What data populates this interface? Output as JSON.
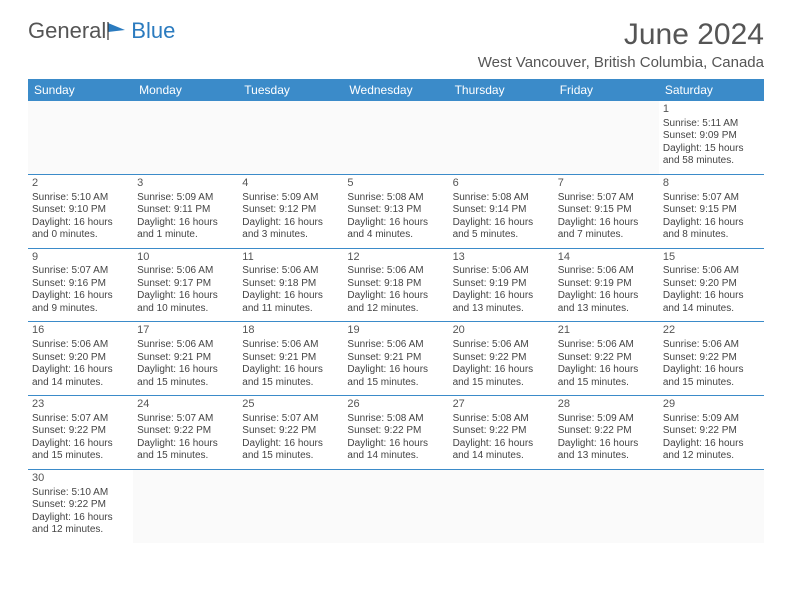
{
  "logo": {
    "text1": "General",
    "text2": "Blue"
  },
  "title": "June 2024",
  "location": "West Vancouver, British Columbia, Canada",
  "header_bg": "#3b8bc9",
  "header_fg": "#ffffff",
  "border_color": "#3b8bc9",
  "days": [
    "Sunday",
    "Monday",
    "Tuesday",
    "Wednesday",
    "Thursday",
    "Friday",
    "Saturday"
  ],
  "weeks": [
    [
      null,
      null,
      null,
      null,
      null,
      null,
      {
        "n": "1",
        "sr": "Sunrise: 5:11 AM",
        "ss": "Sunset: 9:09 PM",
        "dl": "Daylight: 15 hours and 58 minutes."
      }
    ],
    [
      {
        "n": "2",
        "sr": "Sunrise: 5:10 AM",
        "ss": "Sunset: 9:10 PM",
        "dl": "Daylight: 16 hours and 0 minutes."
      },
      {
        "n": "3",
        "sr": "Sunrise: 5:09 AM",
        "ss": "Sunset: 9:11 PM",
        "dl": "Daylight: 16 hours and 1 minute."
      },
      {
        "n": "4",
        "sr": "Sunrise: 5:09 AM",
        "ss": "Sunset: 9:12 PM",
        "dl": "Daylight: 16 hours and 3 minutes."
      },
      {
        "n": "5",
        "sr": "Sunrise: 5:08 AM",
        "ss": "Sunset: 9:13 PM",
        "dl": "Daylight: 16 hours and 4 minutes."
      },
      {
        "n": "6",
        "sr": "Sunrise: 5:08 AM",
        "ss": "Sunset: 9:14 PM",
        "dl": "Daylight: 16 hours and 5 minutes."
      },
      {
        "n": "7",
        "sr": "Sunrise: 5:07 AM",
        "ss": "Sunset: 9:15 PM",
        "dl": "Daylight: 16 hours and 7 minutes."
      },
      {
        "n": "8",
        "sr": "Sunrise: 5:07 AM",
        "ss": "Sunset: 9:15 PM",
        "dl": "Daylight: 16 hours and 8 minutes."
      }
    ],
    [
      {
        "n": "9",
        "sr": "Sunrise: 5:07 AM",
        "ss": "Sunset: 9:16 PM",
        "dl": "Daylight: 16 hours and 9 minutes."
      },
      {
        "n": "10",
        "sr": "Sunrise: 5:06 AM",
        "ss": "Sunset: 9:17 PM",
        "dl": "Daylight: 16 hours and 10 minutes."
      },
      {
        "n": "11",
        "sr": "Sunrise: 5:06 AM",
        "ss": "Sunset: 9:18 PM",
        "dl": "Daylight: 16 hours and 11 minutes."
      },
      {
        "n": "12",
        "sr": "Sunrise: 5:06 AM",
        "ss": "Sunset: 9:18 PM",
        "dl": "Daylight: 16 hours and 12 minutes."
      },
      {
        "n": "13",
        "sr": "Sunrise: 5:06 AM",
        "ss": "Sunset: 9:19 PM",
        "dl": "Daylight: 16 hours and 13 minutes."
      },
      {
        "n": "14",
        "sr": "Sunrise: 5:06 AM",
        "ss": "Sunset: 9:19 PM",
        "dl": "Daylight: 16 hours and 13 minutes."
      },
      {
        "n": "15",
        "sr": "Sunrise: 5:06 AM",
        "ss": "Sunset: 9:20 PM",
        "dl": "Daylight: 16 hours and 14 minutes."
      }
    ],
    [
      {
        "n": "16",
        "sr": "Sunrise: 5:06 AM",
        "ss": "Sunset: 9:20 PM",
        "dl": "Daylight: 16 hours and 14 minutes."
      },
      {
        "n": "17",
        "sr": "Sunrise: 5:06 AM",
        "ss": "Sunset: 9:21 PM",
        "dl": "Daylight: 16 hours and 15 minutes."
      },
      {
        "n": "18",
        "sr": "Sunrise: 5:06 AM",
        "ss": "Sunset: 9:21 PM",
        "dl": "Daylight: 16 hours and 15 minutes."
      },
      {
        "n": "19",
        "sr": "Sunrise: 5:06 AM",
        "ss": "Sunset: 9:21 PM",
        "dl": "Daylight: 16 hours and 15 minutes."
      },
      {
        "n": "20",
        "sr": "Sunrise: 5:06 AM",
        "ss": "Sunset: 9:22 PM",
        "dl": "Daylight: 16 hours and 15 minutes."
      },
      {
        "n": "21",
        "sr": "Sunrise: 5:06 AM",
        "ss": "Sunset: 9:22 PM",
        "dl": "Daylight: 16 hours and 15 minutes."
      },
      {
        "n": "22",
        "sr": "Sunrise: 5:06 AM",
        "ss": "Sunset: 9:22 PM",
        "dl": "Daylight: 16 hours and 15 minutes."
      }
    ],
    [
      {
        "n": "23",
        "sr": "Sunrise: 5:07 AM",
        "ss": "Sunset: 9:22 PM",
        "dl": "Daylight: 16 hours and 15 minutes."
      },
      {
        "n": "24",
        "sr": "Sunrise: 5:07 AM",
        "ss": "Sunset: 9:22 PM",
        "dl": "Daylight: 16 hours and 15 minutes."
      },
      {
        "n": "25",
        "sr": "Sunrise: 5:07 AM",
        "ss": "Sunset: 9:22 PM",
        "dl": "Daylight: 16 hours and 15 minutes."
      },
      {
        "n": "26",
        "sr": "Sunrise: 5:08 AM",
        "ss": "Sunset: 9:22 PM",
        "dl": "Daylight: 16 hours and 14 minutes."
      },
      {
        "n": "27",
        "sr": "Sunrise: 5:08 AM",
        "ss": "Sunset: 9:22 PM",
        "dl": "Daylight: 16 hours and 14 minutes."
      },
      {
        "n": "28",
        "sr": "Sunrise: 5:09 AM",
        "ss": "Sunset: 9:22 PM",
        "dl": "Daylight: 16 hours and 13 minutes."
      },
      {
        "n": "29",
        "sr": "Sunrise: 5:09 AM",
        "ss": "Sunset: 9:22 PM",
        "dl": "Daylight: 16 hours and 12 minutes."
      }
    ],
    [
      {
        "n": "30",
        "sr": "Sunrise: 5:10 AM",
        "ss": "Sunset: 9:22 PM",
        "dl": "Daylight: 16 hours and 12 minutes."
      },
      null,
      null,
      null,
      null,
      null,
      null
    ]
  ]
}
